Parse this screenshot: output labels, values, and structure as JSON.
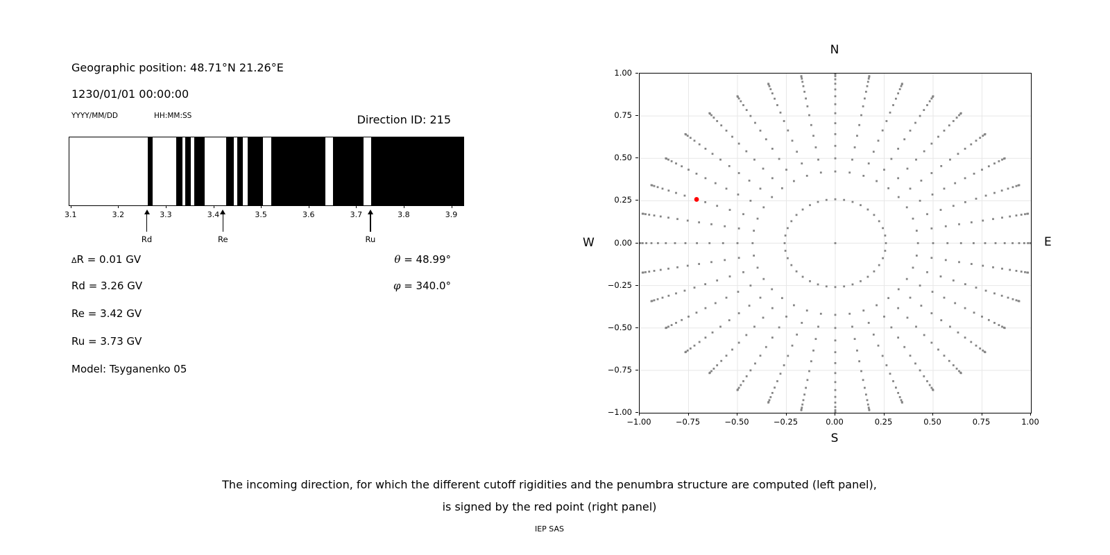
{
  "header": {
    "geo_position": "Geographic position: 48.71°N 21.26°E",
    "datetime": "1230/01/01 00:00:00",
    "date_format_label": "YYYY/MM/DD",
    "time_format_label": "HH:MM:SS",
    "direction_id_label": "Direction ID: 215"
  },
  "left_values": {
    "delta_sym": "Δ",
    "delta_rest": "R = 0.01 GV",
    "rd": "Rd = 3.26 GV",
    "re": "Re = 3.42 GV",
    "ru": "Ru = 3.73 GV",
    "model": "Model: Tsyganenko 05",
    "theta_sym": "θ",
    "theta_rest": " = 48.99°",
    "phi_sym": "φ",
    "phi_rest": " = 340.0°"
  },
  "caption": {
    "line1": "The incoming direction, for which the different cutoff rigidities and the penumbra structure are computed (left panel),",
    "line2": "is signed by the red point (right panel)",
    "credit": "IEP SAS"
  },
  "chart_data": [
    {
      "type": "penumbra-barcode",
      "title": "Direction ID: 215",
      "x_range": [
        3.096,
        3.924
      ],
      "x_ticks": [
        3.1,
        3.2,
        3.3,
        3.4,
        3.5,
        3.6,
        3.7,
        3.8,
        3.9
      ],
      "x_tick_labels": [
        "3.1",
        "3.2",
        "3.3",
        "3.4",
        "3.5",
        "3.6",
        "3.7",
        "3.8",
        "3.9"
      ],
      "forbidden_bands_GV": [
        [
          3.26,
          3.271
        ],
        [
          3.321,
          3.334
        ],
        [
          3.34,
          3.351
        ],
        [
          3.359,
          3.381
        ],
        [
          3.425,
          3.441
        ],
        [
          3.449,
          3.461
        ],
        [
          3.471,
          3.502
        ],
        [
          3.52,
          3.634
        ],
        [
          3.65,
          3.714
        ],
        [
          3.73,
          3.924
        ]
      ],
      "markers": [
        {
          "label": "Rd",
          "value_GV": 3.26
        },
        {
          "label": "Re",
          "value_GV": 3.42
        },
        {
          "label": "Ru",
          "value_GV": 3.73
        }
      ],
      "values": {
        "delta_R_GV": 0.01,
        "Rd_GV": 3.26,
        "Re_GV": 3.42,
        "Ru_GV": 3.73,
        "theta_deg": 48.99,
        "phi_deg": 340.0,
        "model": "Tsyganenko 05"
      }
    },
    {
      "type": "scatter",
      "xlim": [
        -1,
        1
      ],
      "ylim": [
        -1,
        1
      ],
      "grid": true,
      "tick_values": [
        -1,
        -0.75,
        -0.5,
        -0.25,
        0,
        0.25,
        0.5,
        0.75,
        1
      ],
      "tick_labels": [
        "−1.00",
        "−0.75",
        "−0.50",
        "−0.25",
        "0.00",
        "0.25",
        "0.50",
        "0.75",
        "1.00"
      ],
      "grid_values": [
        -0.75,
        -0.5,
        -0.25,
        0,
        0.25,
        0.5,
        0.75
      ],
      "compass_labels": {
        "top": "N",
        "bottom": "S",
        "left": "W",
        "right": "E"
      },
      "direction_grid": {
        "azimuth_step_deg": 10,
        "ring_zenith_deg": 15,
        "spoke_zenith_start_deg": 25,
        "spoke_zenith_end_deg": 90,
        "spoke_zenith_step_deg": 5,
        "radius_mapping": "sin(zenith)",
        "center_dot": true
      },
      "red_point": {
        "x": -0.709,
        "y": 0.258,
        "azimuth_deg": 160,
        "zenith_deg": 48.99,
        "replaces_grid_zenith_deg": 50
      },
      "colors": {
        "dots": "#848484",
        "red_point": "#ff0000",
        "grid": "#e7e7e7",
        "frame": "#000000"
      }
    }
  ]
}
